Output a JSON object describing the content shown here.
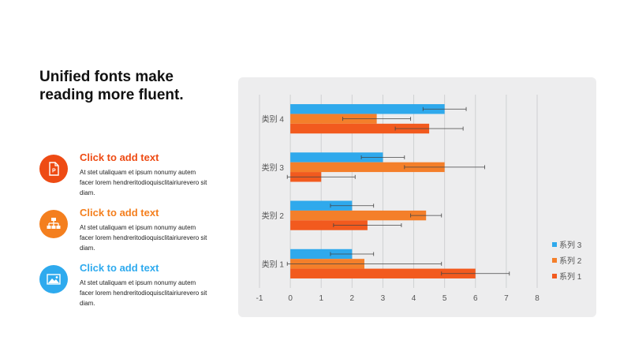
{
  "headline": {
    "line1": "Unified fonts make",
    "line2": "reading more fluent."
  },
  "items": [
    {
      "title": "Click to add text",
      "color": "#ee4b14",
      "icon": "document-icon",
      "body": [
        "At stet utaliquam  et ipsum nonumy  autem",
        "facer lorem hendreritodioquisclitairiurevero  sit",
        "diam."
      ]
    },
    {
      "title": "Click to add text",
      "color": "#f47f1e",
      "icon": "sitemap-icon",
      "body": [
        "At stet utaliquam  et ipsum nonumy  autem",
        "facer lorem hendreritodioquisclitairiurevero  sit",
        "diam."
      ]
    },
    {
      "title": "Click to add text",
      "color": "#2eaaee",
      "icon": "image-icon",
      "body": [
        "At stet utaliquam  et ipsum nonumy  autem",
        "facer lorem hendreritodioquisclitairiurevero  sit",
        "diam."
      ]
    }
  ],
  "chart_data": {
    "type": "bar",
    "orientation": "horizontal",
    "categories": [
      "类别 1",
      "类别 2",
      "类别 3",
      "类别 4"
    ],
    "series": [
      {
        "name": "系列 1",
        "color": "#f25a1e",
        "values": [
          6,
          2.5,
          1,
          4.5
        ],
        "errors": [
          1.1,
          1.1,
          1.1,
          1.1
        ]
      },
      {
        "name": "系列 2",
        "color": "#f47f2a",
        "values": [
          2.4,
          4.4,
          5,
          2.8
        ],
        "errors": [
          2.5,
          0.5,
          1.3,
          1.1
        ]
      },
      {
        "name": "系列 3",
        "color": "#2fa9ec",
        "values": [
          2,
          2,
          3,
          5
        ],
        "errors": [
          0.7,
          0.7,
          0.7,
          0.7
        ]
      }
    ],
    "xlim": [
      -1,
      8
    ],
    "xticks": [
      -1,
      0,
      1,
      2,
      3,
      4,
      5,
      6,
      7,
      8
    ],
    "grid": true,
    "legend_position": "bottom-right",
    "title": "",
    "xlabel": "",
    "ylabel": ""
  }
}
